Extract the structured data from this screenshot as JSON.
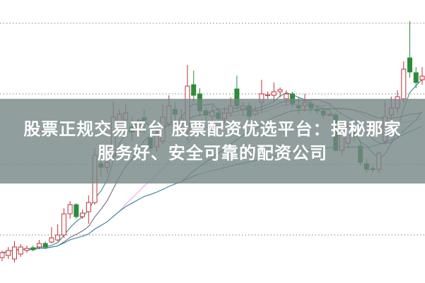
{
  "banner": {
    "line1": "股票正规交易平台 股票配资优选平台：揭秘那家",
    "line2": "服务好、安全可靠的配资公司"
  },
  "chart_data": {
    "type": "candlestick",
    "title": "",
    "xlabel": "",
    "ylabel": "",
    "ylim": [
      0,
      400
    ],
    "gridlines": [
      67,
      167,
      267,
      367
    ],
    "grid": "horizontal dotted",
    "up_color": "#c0303a",
    "down_color": "#2e8b3a",
    "moving_averages": [
      {
        "period": 5,
        "color": "#2f7f84"
      },
      {
        "period": 10,
        "color": "#6c5a7a"
      },
      {
        "period": 20,
        "color": "#e8a0e0"
      },
      {
        "period": 30,
        "color": "#3f7a3f"
      },
      {
        "period": 60,
        "color": "#3a8aa8"
      }
    ],
    "candles_ohlc": [
      [
        35,
        45,
        30,
        42
      ],
      [
        38,
        50,
        33,
        45
      ],
      [
        33,
        58,
        28,
        50
      ],
      [
        40,
        54,
        36,
        50
      ],
      [
        45,
        52,
        42,
        48
      ],
      [
        49,
        52,
        44,
        46
      ],
      [
        50,
        60,
        47,
        55
      ],
      [
        55,
        58,
        47,
        50
      ],
      [
        57,
        78,
        55,
        63
      ],
      [
        60,
        82,
        58,
        67
      ],
      [
        67,
        105,
        63,
        97
      ],
      [
        97,
        115,
        90,
        110
      ],
      [
        110,
        112,
        90,
        93
      ],
      [
        93,
        103,
        90,
        98
      ],
      [
        100,
        123,
        83,
        113
      ],
      [
        113,
        190,
        110,
        180
      ],
      [
        168,
        172,
        150,
        163
      ],
      [
        163,
        175,
        155,
        170
      ],
      [
        180,
        257,
        175,
        234
      ],
      [
        225,
        245,
        215,
        238
      ],
      [
        230,
        252,
        225,
        240
      ],
      [
        220,
        235,
        200,
        213
      ],
      [
        213,
        232,
        205,
        224
      ],
      [
        233,
        245,
        210,
        230
      ],
      [
        204,
        210,
        185,
        190
      ],
      [
        192,
        220,
        185,
        210
      ],
      [
        200,
        252,
        195,
        234
      ],
      [
        225,
        265,
        220,
        250
      ],
      [
        245,
        255,
        225,
        238
      ],
      [
        225,
        245,
        215,
        232
      ],
      [
        215,
        308,
        200,
        278
      ],
      [
        280,
        300,
        255,
        265
      ],
      [
        267,
        275,
        235,
        243
      ],
      [
        243,
        248,
        230,
        237
      ],
      [
        235,
        250,
        228,
        242
      ],
      [
        240,
        247,
        225,
        232
      ],
      [
        232,
        248,
        225,
        240
      ],
      [
        240,
        262,
        235,
        250
      ],
      [
        274,
        293,
        245,
        250
      ],
      [
        245,
        255,
        235,
        250
      ],
      [
        250,
        255,
        230,
        235
      ],
      [
        238,
        250,
        235,
        243
      ],
      [
        255,
        287,
        240,
        267
      ],
      [
        265,
        270,
        260,
        266
      ],
      [
        265,
        283,
        258,
        270
      ],
      [
        270,
        276,
        262,
        273
      ],
      [
        260,
        272,
        250,
        267
      ],
      [
        267,
        270,
        248,
        253
      ],
      [
        250,
        262,
        238,
        247
      ],
      [
        250,
        267,
        242,
        255
      ],
      [
        253,
        258,
        240,
        247
      ],
      [
        245,
        250,
        238,
        243
      ],
      [
        243,
        248,
        232,
        237
      ],
      [
        237,
        240,
        235,
        238
      ],
      [
        237,
        240,
        185,
        187
      ],
      [
        187,
        215,
        180,
        210
      ],
      [
        197,
        225,
        190,
        220
      ],
      [
        215,
        222,
        200,
        207
      ],
      [
        193,
        200,
        165,
        170
      ],
      [
        168,
        175,
        155,
        160
      ],
      [
        161,
        165,
        155,
        160
      ],
      [
        160,
        185,
        155,
        183
      ],
      [
        200,
        257,
        195,
        235
      ],
      [
        237,
        263,
        230,
        247
      ],
      [
        247,
        272,
        240,
        263
      ],
      [
        260,
        313,
        255,
        302
      ],
      [
        318,
        370,
        290,
        298
      ],
      [
        297,
        305,
        275,
        283
      ],
      [
        287,
        305,
        280,
        292
      ]
    ]
  }
}
